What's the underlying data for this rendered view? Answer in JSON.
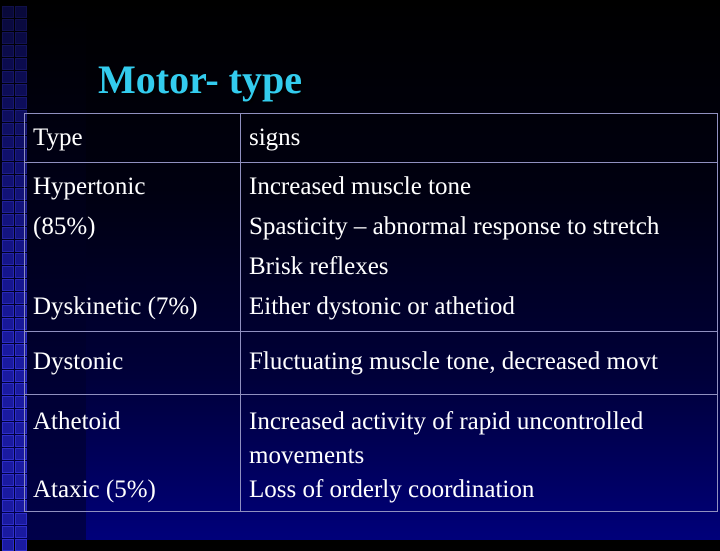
{
  "title": "Motor- type",
  "table": {
    "header": {
      "type": "Type",
      "signs": "signs"
    },
    "rows": [
      {
        "type_lines": [
          "Hypertonic",
          "(85%)"
        ],
        "sub_type": "Dyskinetic (7%)",
        "signs_lines": [
          "Increased muscle tone",
          "Spasticity – abnormal response to stretch",
          "Brisk reflexes",
          "Either dystonic or athetiod"
        ]
      },
      {
        "type": "Dystonic",
        "signs": "Fluctuating muscle tone, decreased movt"
      },
      {
        "type": "Athetoid",
        "sub_type": "Ataxic (5%)",
        "signs_lines": [
          "Increased activity of rapid uncontrolled",
          "movements",
          "Loss of orderly coordination"
        ]
      }
    ]
  }
}
